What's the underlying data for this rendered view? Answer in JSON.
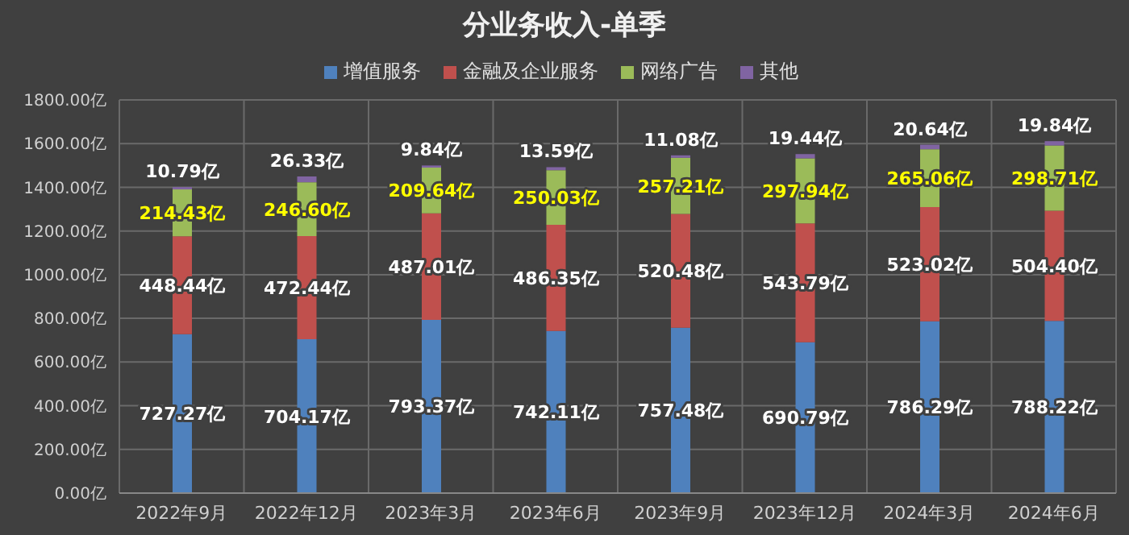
{
  "chart_data": {
    "type": "bar",
    "title": "分业务收入-单季",
    "stacked": true,
    "grid": true,
    "legend": "top",
    "categories": [
      "2022年9月",
      "2022年12月",
      "2023年3月",
      "2023年6月",
      "2023年9月",
      "2023年12月",
      "2024年3月",
      "2024年6月"
    ],
    "ylim": [
      0,
      1800
    ],
    "yticks": [
      {
        "value": 0,
        "label": "0.00亿"
      },
      {
        "value": 200,
        "label": "200.00亿"
      },
      {
        "value": 400,
        "label": "400.00亿"
      },
      {
        "value": 600,
        "label": "600.00亿"
      },
      {
        "value": 800,
        "label": "800.00亿"
      },
      {
        "value": 1000,
        "label": "1000.00亿"
      },
      {
        "value": 1200,
        "label": "1200.00亿"
      },
      {
        "value": 1400,
        "label": "1400.00亿"
      },
      {
        "value": 1600,
        "label": "1600.00亿"
      },
      {
        "value": 1800,
        "label": "1800.00亿"
      }
    ],
    "series": [
      {
        "name": "增值服务",
        "color": "#4f81bd",
        "values": [
          727.27,
          704.17,
          793.37,
          742.11,
          757.48,
          690.79,
          786.29,
          788.22
        ],
        "value_labels": [
          "727.27亿",
          "704.17亿",
          "793.37亿",
          "742.11亿",
          "757.48亿",
          "690.79亿",
          "786.29亿",
          "788.22亿"
        ]
      },
      {
        "name": "金融及企业服务",
        "color": "#c0504d",
        "values": [
          448.44,
          472.44,
          487.01,
          486.35,
          520.48,
          543.79,
          523.02,
          504.4
        ],
        "value_labels": [
          "448.44亿",
          "472.44亿",
          "487.01亿",
          "486.35亿",
          "520.48亿",
          "543.79亿",
          "523.02亿",
          "504.40亿"
        ]
      },
      {
        "name": "网络广告",
        "color": "#9bbb59",
        "values": [
          214.43,
          246.6,
          209.64,
          250.03,
          257.21,
          297.94,
          265.06,
          298.71
        ],
        "value_labels": [
          "214.43亿",
          "246.60亿",
          "209.64亿",
          "250.03亿",
          "257.21亿",
          "297.94亿",
          "265.06亿",
          "298.71亿"
        ]
      },
      {
        "name": "其他",
        "color": "#8064a2",
        "values": [
          10.79,
          26.33,
          9.84,
          13.59,
          11.08,
          19.44,
          20.64,
          19.84
        ],
        "value_labels": [
          "10.79亿",
          "26.33亿",
          "9.84亿",
          "13.59亿",
          "11.08亿",
          "19.44亿",
          "20.64亿",
          "19.84亿"
        ]
      }
    ]
  }
}
